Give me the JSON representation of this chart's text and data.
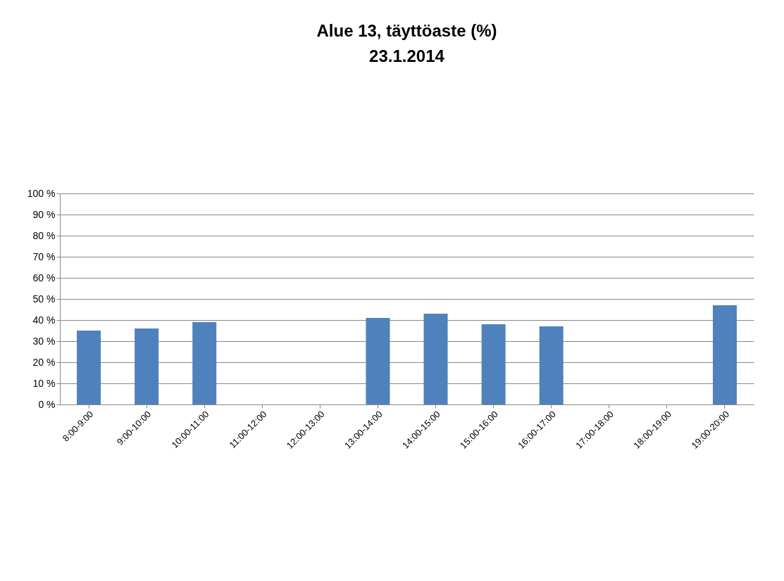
{
  "chart_data": {
    "type": "bar",
    "title": "Alue 13, täyttöaste (%)",
    "subtitle": "23.1.2014",
    "categories": [
      "8:00-9:00",
      "9:00-10:00",
      "10:00-11:00",
      "11:00-12:00",
      "12:00-13:00",
      "13:00-14:00",
      "14:00-15:00",
      "15:00-16:00",
      "16:00-17:00",
      "17:00-18:00",
      "18:00-19:00",
      "19:00-20:00"
    ],
    "values": [
      35,
      36,
      39,
      null,
      null,
      41,
      43,
      38,
      37,
      null,
      null,
      47
    ],
    "color": "#4f81bd",
    "ylim": [
      0,
      100
    ],
    "yticks": [
      {
        "value": 0,
        "label": "0 %"
      },
      {
        "value": 10,
        "label": "10 %"
      },
      {
        "value": 20,
        "label": "20 %"
      },
      {
        "value": 30,
        "label": "30 %"
      },
      {
        "value": 40,
        "label": "40 %"
      },
      {
        "value": 50,
        "label": "50 %"
      },
      {
        "value": 60,
        "label": "60 %"
      },
      {
        "value": 70,
        "label": "70 %"
      },
      {
        "value": 80,
        "label": "80 %"
      },
      {
        "value": 90,
        "label": "90 %"
      },
      {
        "value": 100,
        "label": "100 %"
      }
    ],
    "grid": "y"
  }
}
